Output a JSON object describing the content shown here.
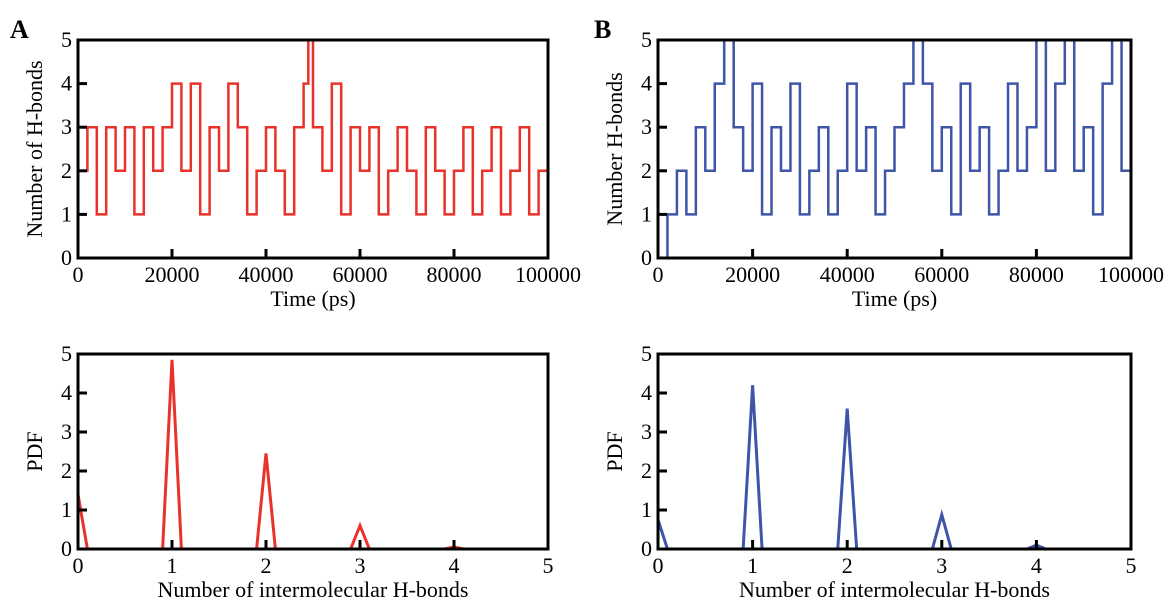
{
  "panel_letters": [
    "A",
    "B"
  ],
  "colors": {
    "A": "#e8322a",
    "B": "#3f55a8",
    "axis": "#000000"
  },
  "chart_data": [
    {
      "type": "line",
      "panel": "A",
      "xlabel": "Time (ps)",
      "ylabel": "Number of H-bonds",
      "xlim": [
        0,
        100000
      ],
      "ylim": [
        0,
        5
      ],
      "xticks": [
        0,
        20000,
        40000,
        60000,
        80000,
        100000
      ],
      "yticks": [
        0,
        1,
        2,
        3,
        4,
        5
      ],
      "grid": false,
      "series": [
        {
          "color": "#e8322a",
          "x": [
            0,
            2000,
            4000,
            6000,
            8000,
            10000,
            12000,
            14000,
            16000,
            18000,
            20000,
            22000,
            24000,
            26000,
            28000,
            30000,
            32000,
            34000,
            36000,
            38000,
            40000,
            42000,
            44000,
            46000,
            48000,
            49000,
            50000,
            52000,
            54000,
            56000,
            58000,
            60000,
            62000,
            64000,
            66000,
            68000,
            70000,
            72000,
            74000,
            76000,
            78000,
            80000,
            82000,
            84000,
            86000,
            88000,
            90000,
            92000,
            94000,
            96000,
            98000,
            100000
          ],
          "y": [
            2,
            3,
            1,
            3,
            2,
            3,
            1,
            3,
            2,
            3,
            4,
            2,
            4,
            1,
            3,
            2,
            4,
            3,
            1,
            2,
            3,
            2,
            1,
            3,
            4,
            5,
            3,
            2,
            4,
            1,
            3,
            2,
            3,
            1,
            2,
            3,
            2,
            1,
            3,
            2,
            1,
            2,
            3,
            1,
            2,
            3,
            1,
            2,
            3,
            1,
            2,
            3
          ]
        }
      ]
    },
    {
      "type": "line",
      "panel": "B",
      "xlabel": "Time (ps)",
      "ylabel": "Number H-bonds",
      "xlim": [
        0,
        100000
      ],
      "ylim": [
        0,
        5
      ],
      "xticks": [
        0,
        20000,
        40000,
        60000,
        80000,
        100000
      ],
      "yticks": [
        0,
        1,
        2,
        3,
        4,
        5
      ],
      "grid": false,
      "series": [
        {
          "color": "#3f55a8",
          "x": [
            0,
            2000,
            4000,
            6000,
            8000,
            10000,
            12000,
            14000,
            16000,
            18000,
            20000,
            22000,
            24000,
            26000,
            28000,
            30000,
            32000,
            34000,
            36000,
            38000,
            40000,
            42000,
            44000,
            46000,
            48000,
            50000,
            52000,
            54000,
            56000,
            58000,
            60000,
            62000,
            64000,
            66000,
            68000,
            70000,
            72000,
            74000,
            76000,
            78000,
            80000,
            82000,
            84000,
            86000,
            88000,
            90000,
            92000,
            94000,
            96000,
            98000,
            100000
          ],
          "y": [
            0,
            1,
            2,
            1,
            3,
            2,
            4,
            5,
            3,
            2,
            4,
            1,
            3,
            2,
            4,
            1,
            2,
            3,
            1,
            2,
            4,
            2,
            3,
            1,
            2,
            3,
            4,
            5,
            4,
            2,
            3,
            1,
            4,
            2,
            3,
            1,
            2,
            4,
            2,
            3,
            5,
            2,
            4,
            5,
            2,
            3,
            1,
            4,
            5,
            2,
            3
          ]
        }
      ]
    },
    {
      "type": "line",
      "panel": "A",
      "xlabel": "Number of intermolecular H-bonds",
      "ylabel": "PDF",
      "xlim": [
        0,
        5
      ],
      "ylim": [
        0,
        5
      ],
      "xticks": [
        0,
        1,
        2,
        3,
        4,
        5
      ],
      "yticks": [
        0,
        1,
        2,
        3,
        4,
        5
      ],
      "grid": false,
      "series": [
        {
          "color": "#e8322a",
          "x": [
            0,
            0.1,
            0.9,
            1,
            1.1,
            1.9,
            2,
            2.1,
            2.9,
            3,
            3.1,
            3.9,
            4,
            4.1,
            5
          ],
          "y": [
            1.4,
            0,
            0,
            4.85,
            0,
            0,
            2.45,
            0,
            0,
            0.6,
            0,
            0,
            0.05,
            0,
            0
          ]
        }
      ]
    },
    {
      "type": "line",
      "panel": "B",
      "xlabel": "Number of intermolecular H-bonds",
      "ylabel": "PDF",
      "xlim": [
        0,
        5
      ],
      "ylim": [
        0,
        5
      ],
      "xticks": [
        0,
        1,
        2,
        3,
        4,
        5
      ],
      "yticks": [
        0,
        1,
        2,
        3,
        4,
        5
      ],
      "grid": false,
      "series": [
        {
          "color": "#3f55a8",
          "x": [
            0,
            0.1,
            0.9,
            1,
            1.1,
            1.9,
            2,
            2.1,
            2.9,
            3,
            3.1,
            3.9,
            4,
            4.1,
            5
          ],
          "y": [
            0.75,
            0,
            0,
            4.2,
            0,
            0,
            3.6,
            0,
            0,
            0.88,
            0,
            0,
            0.1,
            0,
            0
          ]
        }
      ]
    }
  ]
}
